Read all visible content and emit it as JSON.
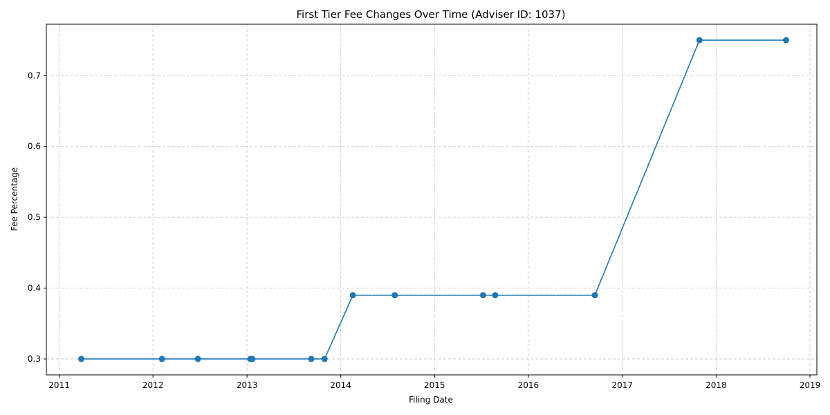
{
  "chart_data": {
    "type": "line",
    "title": "First Tier Fee Changes Over Time (Adviser ID: 1037)",
    "xlabel": "Filing Date",
    "ylabel": "Fee Percentage",
    "x_ticks": [
      "2011",
      "2012",
      "2013",
      "2014",
      "2015",
      "2016",
      "2017",
      "2018",
      "2019"
    ],
    "y_ticks": [
      "0.3",
      "0.4",
      "0.5",
      "0.6",
      "0.7"
    ],
    "xlim": [
      "2010-11-12",
      "2019-01-28"
    ],
    "ylim": [
      0.2775,
      0.7725
    ],
    "grid": true,
    "series": [
      {
        "color": "#1f77b4",
        "marker": "circle",
        "points": [
          {
            "x": "2011-03-28",
            "y": 0.3
          },
          {
            "x": "2012-02-05",
            "y": 0.3
          },
          {
            "x": "2012-06-24",
            "y": 0.3
          },
          {
            "x": "2013-01-14",
            "y": 0.3
          },
          {
            "x": "2013-01-22",
            "y": 0.3
          },
          {
            "x": "2013-09-08",
            "y": 0.3
          },
          {
            "x": "2013-10-30",
            "y": 0.3
          },
          {
            "x": "2014-02-17",
            "y": 0.39
          },
          {
            "x": "2014-07-30",
            "y": 0.39
          },
          {
            "x": "2015-07-09",
            "y": 0.39
          },
          {
            "x": "2015-08-25",
            "y": 0.39
          },
          {
            "x": "2016-09-16",
            "y": 0.39
          },
          {
            "x": "2017-10-28",
            "y": 0.75
          },
          {
            "x": "2018-09-30",
            "y": 0.75
          }
        ]
      }
    ]
  }
}
